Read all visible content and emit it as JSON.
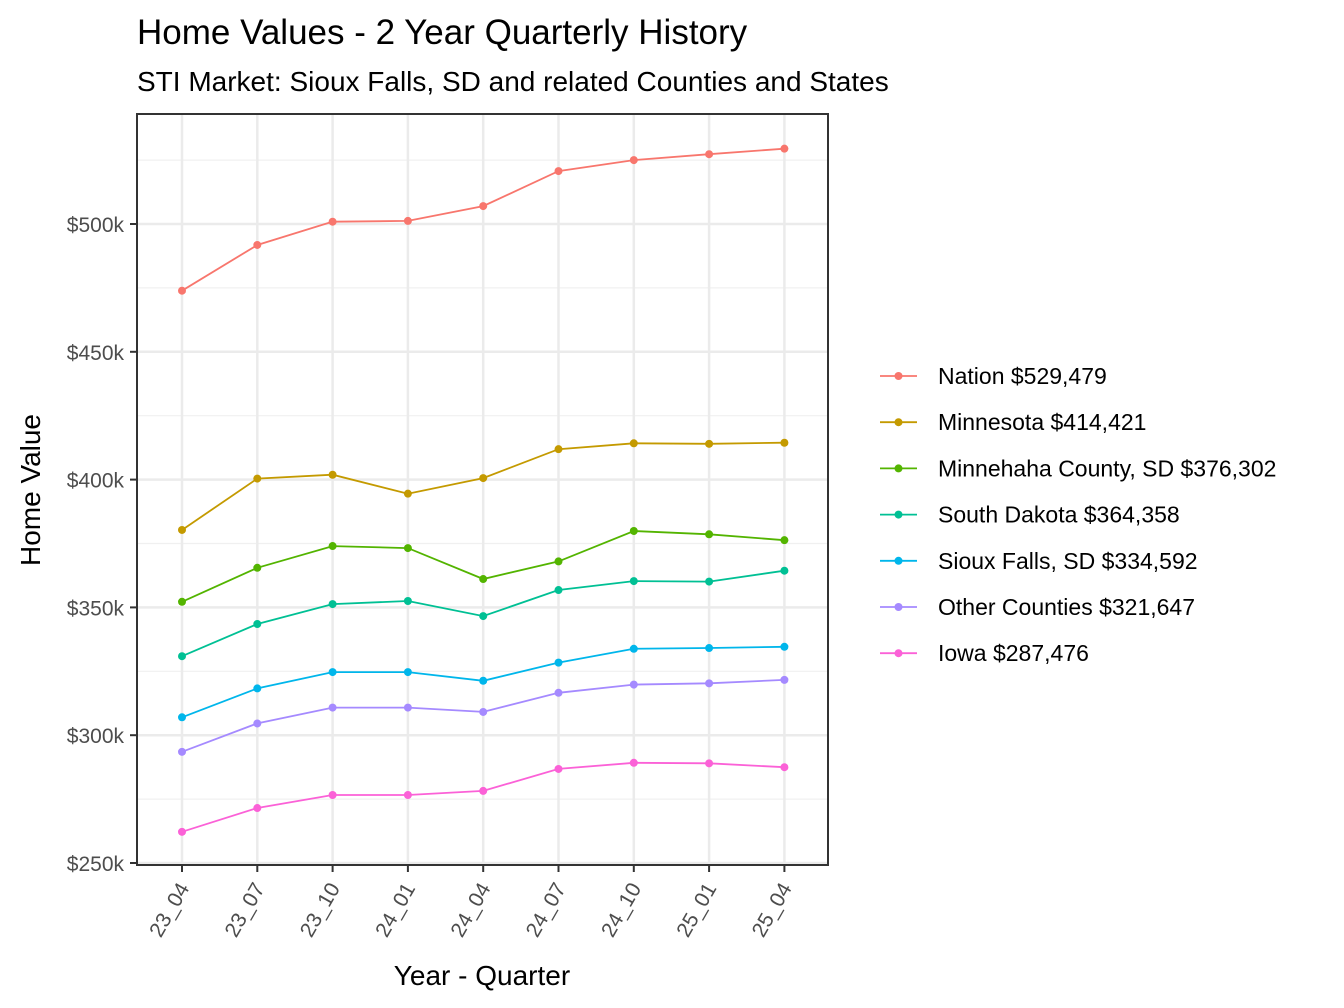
{
  "chart_data": {
    "type": "line",
    "title": "Home Values - 2 Year Quarterly History",
    "subtitle": "STI Market: Sioux Falls, SD and related Counties and States",
    "xlabel": "Year - Quarter",
    "ylabel": "Home Value",
    "x": [
      "23_04",
      "23_07",
      "23_10",
      "24_01",
      "24_04",
      "24_07",
      "24_10",
      "25_01",
      "25_04"
    ],
    "ylim": [
      250000,
      530000
    ],
    "yticks": [
      250000,
      300000,
      350000,
      400000,
      450000,
      500000
    ],
    "ytick_labels": [
      "$250k",
      "$300k",
      "$350k",
      "$400k",
      "$450k",
      "$500k"
    ],
    "grid": true,
    "legend_position": "right",
    "series": [
      {
        "name": "Nation $529,479",
        "color": "#F8766D",
        "values": [
          473900,
          491800,
          500900,
          501200,
          507000,
          520700,
          525000,
          527300,
          529479
        ]
      },
      {
        "name": "Minnesota $414,421",
        "color": "#C49A00",
        "values": [
          380300,
          400400,
          401900,
          394500,
          400600,
          411900,
          414200,
          414000,
          414421
        ]
      },
      {
        "name": "Minnehaha County, SD $376,302",
        "color": "#53B400",
        "values": [
          352200,
          365500,
          374000,
          373200,
          361100,
          368000,
          379900,
          378600,
          376302
        ]
      },
      {
        "name": "South Dakota $364,358",
        "color": "#00C094",
        "values": [
          330900,
          343500,
          351300,
          352500,
          346600,
          356800,
          360300,
          360100,
          364358
        ]
      },
      {
        "name": "Sioux Falls, SD $334,592",
        "color": "#00B6EB",
        "values": [
          307000,
          318300,
          324700,
          324700,
          321300,
          328400,
          333800,
          334100,
          334592
        ]
      },
      {
        "name": "Other Counties $321,647",
        "color": "#A58AFF",
        "values": [
          293500,
          304600,
          310800,
          310800,
          309100,
          316600,
          319800,
          320300,
          321647
        ]
      },
      {
        "name": "Iowa $287,476",
        "color": "#FB61D7",
        "values": [
          262200,
          271500,
          276600,
          276600,
          278200,
          286800,
          289200,
          289000,
          287476
        ]
      }
    ]
  }
}
